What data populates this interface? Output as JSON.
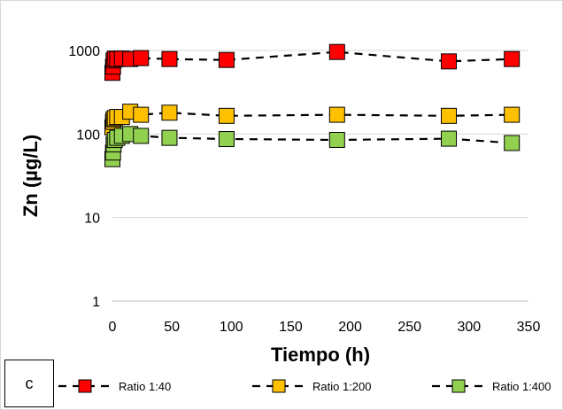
{
  "panel_label": "c",
  "chart_data": {
    "type": "scatter",
    "title": "",
    "xlabel": "Tiempo (h)",
    "ylabel": "Zn (µg/L)",
    "xlim": [
      0,
      350
    ],
    "ylim": [
      1,
      1000
    ],
    "yscale": "log",
    "x_ticks": [
      0,
      50,
      100,
      150,
      200,
      250,
      300,
      350
    ],
    "y_ticks": [
      1,
      10,
      100,
      1000
    ],
    "grid": "horizontal",
    "legend_position": "bottom",
    "series": [
      {
        "name": "Ratio 1:40",
        "color": "#ff0000",
        "x": [
          0,
          0.5,
          1,
          2,
          4,
          8,
          15,
          24,
          48,
          96,
          189,
          283,
          336
        ],
        "y": [
          540,
          640,
          760,
          800,
          790,
          800,
          790,
          810,
          790,
          770,
          960,
          740,
          790
        ]
      },
      {
        "name": "Ratio 1:200",
        "color": "#ffc000",
        "x": [
          0,
          0.5,
          1,
          2,
          4,
          8,
          15,
          24,
          48,
          96,
          189,
          283,
          336
        ],
        "y": [
          120,
          140,
          150,
          155,
          160,
          160,
          185,
          170,
          180,
          165,
          170,
          165,
          170
        ]
      },
      {
        "name": "Ratio 1:400",
        "color": "#92d050",
        "x": [
          0,
          0.5,
          1,
          2,
          4,
          8,
          15,
          24,
          48,
          96,
          189,
          283,
          336
        ],
        "y": [
          50,
          60,
          75,
          85,
          90,
          95,
          100,
          95,
          90,
          87,
          85,
          88,
          78
        ]
      }
    ]
  }
}
